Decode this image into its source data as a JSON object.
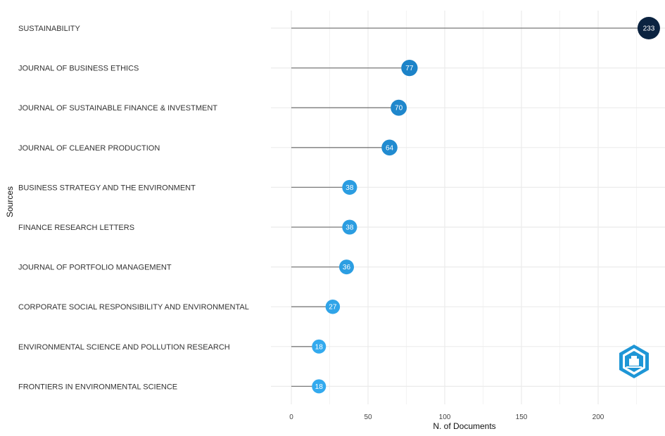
{
  "chart_data": {
    "type": "lollipop",
    "categories": [
      "SUSTAINABILITY",
      "JOURNAL OF BUSINESS ETHICS",
      "JOURNAL OF SUSTAINABLE FINANCE & INVESTMENT",
      "JOURNAL OF CLEANER PRODUCTION",
      "BUSINESS STRATEGY AND THE ENVIRONMENT",
      "FINANCE RESEARCH LETTERS",
      "JOURNAL OF PORTFOLIO MANAGEMENT",
      "CORPORATE SOCIAL RESPONSIBILITY AND ENVIRONMENTAL",
      "ENVIRONMENTAL SCIENCE AND POLLUTION RESEARCH",
      "FRONTIERS IN ENVIRONMENTAL SCIENCE"
    ],
    "values": [
      233,
      77,
      70,
      64,
      38,
      38,
      36,
      27,
      18,
      18
    ],
    "xlabel": "N. of Documents",
    "ylabel": "Sources",
    "xlim": [
      0,
      235
    ],
    "xticks": [
      0,
      50,
      100,
      150,
      200
    ],
    "grid": true,
    "colors": {
      "low": "#33aaee",
      "mid": "#1a7fc4",
      "high": "#0b2340",
      "stem": "#7a7a7a",
      "grid": "#ebebeb"
    }
  }
}
